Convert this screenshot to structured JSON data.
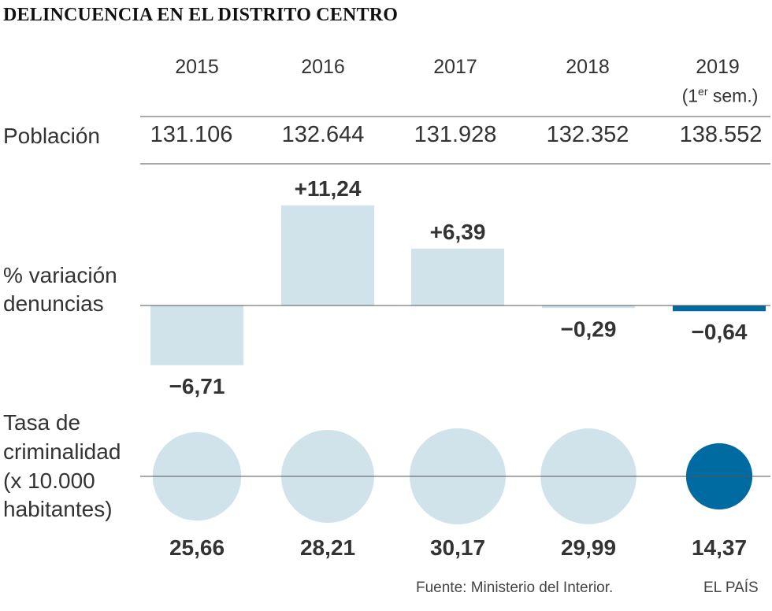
{
  "title": "DELINCUENCIA EN EL DISTRITO CENTRO",
  "years": [
    "2015",
    "2016",
    "2017",
    "2018",
    "2019"
  ],
  "year_note": {
    "prefix": "(1",
    "sup": "er",
    "suffix": " sem.)"
  },
  "labels": {
    "population": "Población",
    "variation_line1": "% variación",
    "variation_line2": "denuncias",
    "rate_line1": "Tasa de",
    "rate_line2": "criminalidad",
    "rate_line3": "(x 10.000",
    "rate_line4": "habitantes)"
  },
  "population": [
    "131.106",
    "132.644",
    "131.928",
    "132.352",
    "138.552"
  ],
  "footer": {
    "source": "Fuente: Ministerio del Interior.",
    "brand": "EL PAÍS"
  },
  "colors": {
    "light": "#d0e3eb",
    "highlight": "#006ba1",
    "axis": "#555555"
  },
  "chart_data": [
    {
      "type": "bar",
      "title": "% variación denuncias",
      "categories": [
        "2015",
        "2016",
        "2017",
        "2018",
        "2019"
      ],
      "values": [
        -6.71,
        11.24,
        6.39,
        -0.29,
        -0.64
      ],
      "value_labels": [
        "−6,71",
        "+11,24",
        "+6,39",
        "−0,29",
        "−0,64"
      ],
      "highlight_index": 4
    },
    {
      "type": "scatter",
      "title": "Tasa de criminalidad (x 10.000 habitantes)",
      "categories": [
        "2015",
        "2016",
        "2017",
        "2018",
        "2019"
      ],
      "values": [
        25.66,
        28.21,
        30.17,
        29.99,
        14.37
      ],
      "value_labels": [
        "25,66",
        "28,21",
        "30,17",
        "29,99",
        "14,37"
      ],
      "highlight_index": 4
    }
  ]
}
